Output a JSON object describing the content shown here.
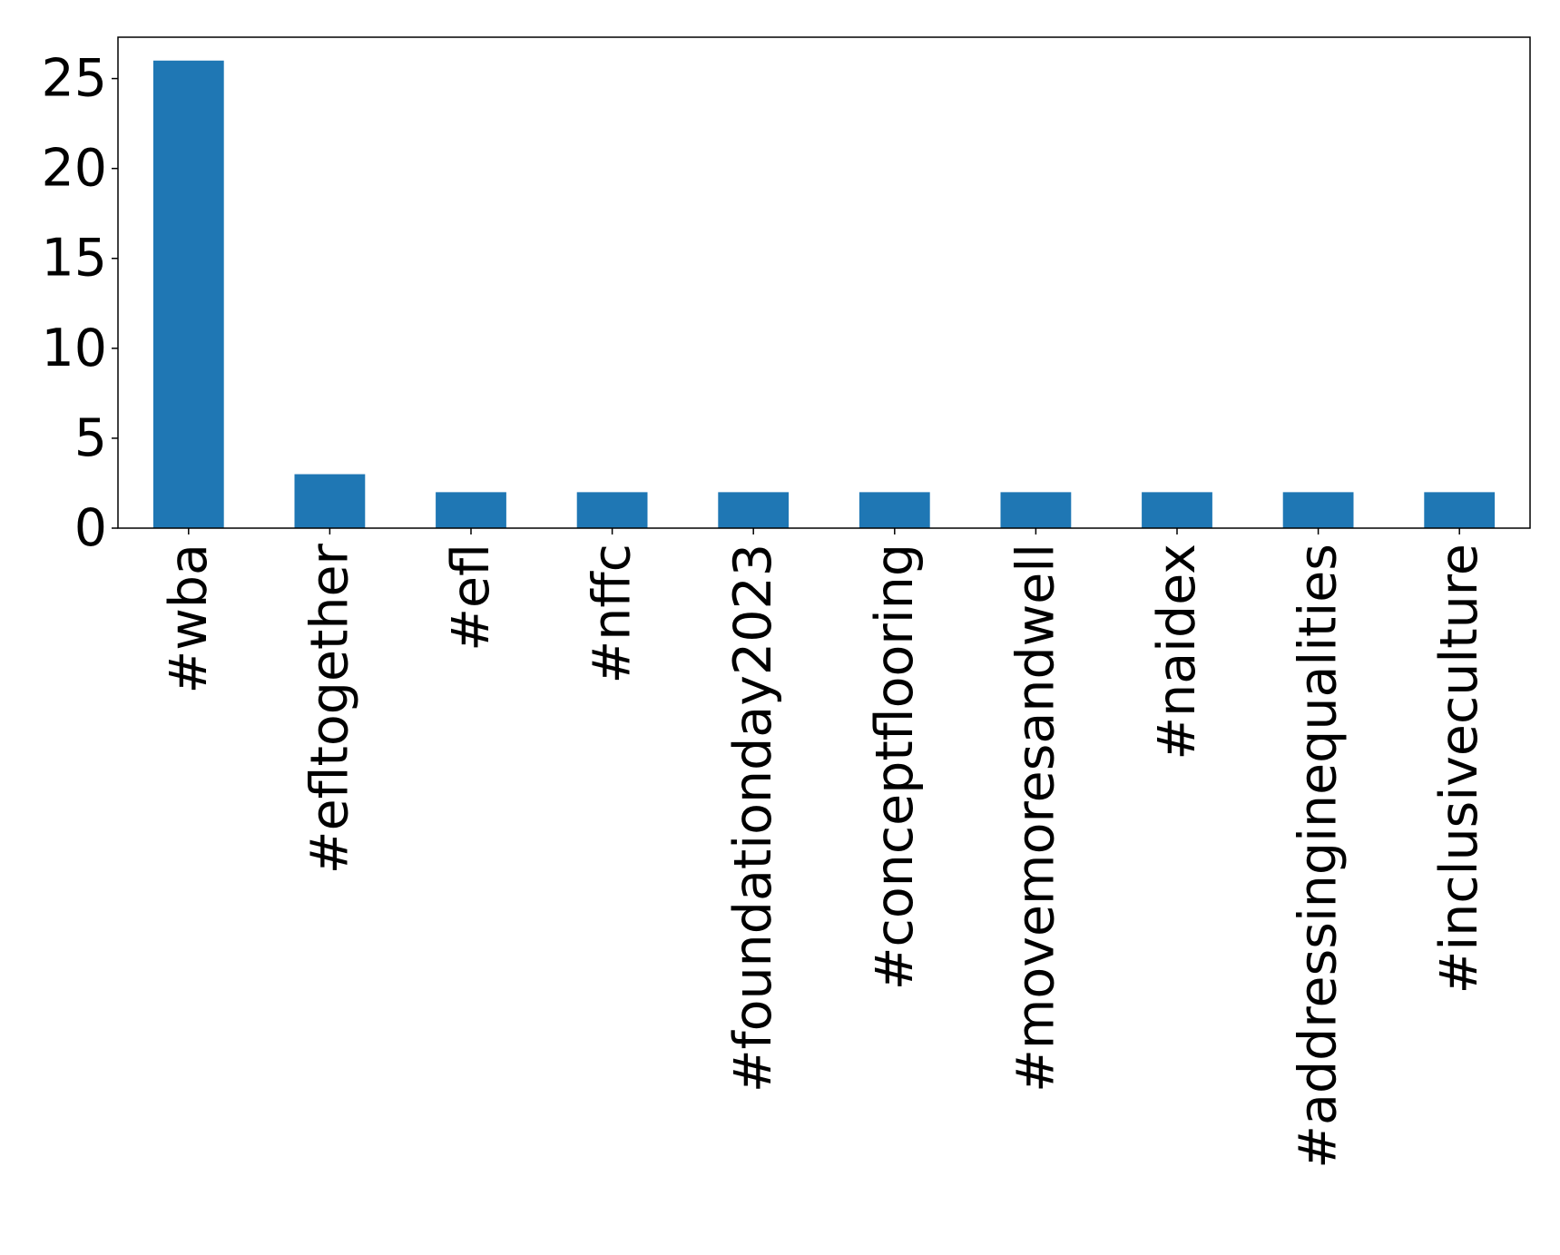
{
  "chart_data": {
    "type": "bar",
    "title": "",
    "xlabel": "",
    "ylabel": "",
    "categories": [
      "#wba",
      "#efltogether",
      "#efl",
      "#nffc",
      "#foundationday2023",
      "#conceptflooring",
      "#movemoresandwell",
      "#naidex",
      "#addressinginequalities",
      "#inclusiveculture"
    ],
    "values": [
      26,
      3,
      2,
      2,
      2,
      2,
      2,
      2,
      2,
      2
    ],
    "ylim": [
      0,
      27.3
    ],
    "yticks": [
      "0",
      "5",
      "10",
      "15",
      "20",
      "25"
    ],
    "grid": false,
    "legend": "none",
    "bar_color": "#1f77b4"
  }
}
